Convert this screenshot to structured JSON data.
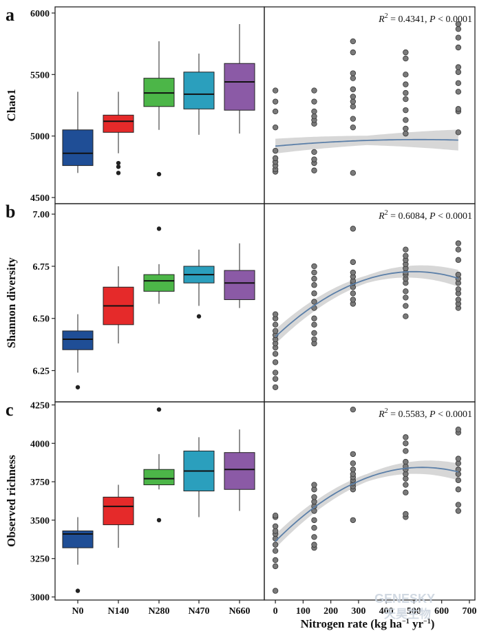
{
  "figure": {
    "x_axis_title": "Nitrogen rate (kg ha",
    "x_axis_title_sup1": "−1",
    "x_axis_title_mid": " yr",
    "x_axis_title_sup2": "−1",
    "x_axis_title_end": ")",
    "watermark": {
      "main": "GENESKY",
      "sub": "天昊生物"
    },
    "colors": {
      "N0": "#1f4e96",
      "N140": "#e52a2a",
      "N280": "#4cb648",
      "N470": "#2b9fbd",
      "N660": "#8b5aa6",
      "fit_line": "#5b7fa8",
      "ci_band": "#d3d3d3",
      "point_fill": "#7a7a7a"
    }
  },
  "chart_data": [
    {
      "panel": "a",
      "type": "box+scatter",
      "ylabel": "Chao1",
      "ylim": [
        4450,
        6050
      ],
      "yticks": [
        4500,
        5000,
        5500,
        6000
      ],
      "box": {
        "categories": [
          "N0",
          "N140",
          "N280",
          "N470",
          "N660"
        ],
        "stats": [
          {
            "wlo": 4700,
            "q1": 4760,
            "med": 4860,
            "q3": 5050,
            "whi": 5360,
            "out": []
          },
          {
            "wlo": 4860,
            "q1": 5030,
            "med": 5120,
            "q3": 5170,
            "whi": 5360,
            "out": [
              4700,
              4750,
              4780
            ]
          },
          {
            "wlo": 5050,
            "q1": 5240,
            "med": 5350,
            "q3": 5470,
            "whi": 5770,
            "out": [
              4690
            ]
          },
          {
            "wlo": 5010,
            "q1": 5220,
            "med": 5340,
            "q3": 5520,
            "whi": 5670,
            "out": []
          },
          {
            "wlo": 5020,
            "q1": 5210,
            "med": 5440,
            "q3": 5590,
            "whi": 5910,
            "out": []
          }
        ]
      },
      "scatter": {
        "xlim": [
          -40,
          720
        ],
        "xticks": [
          0,
          100,
          200,
          300,
          400,
          500,
          600,
          700
        ],
        "stat_text": {
          "r2_symbol": "R",
          "r2_sup": "2",
          "r2_value": " = 0.4341, ",
          "p_symbol": "P",
          "p_value": " < 0.0001"
        },
        "points": [
          [
            0,
            4710
          ],
          [
            0,
            4730
          ],
          [
            0,
            4760
          ],
          [
            0,
            4790
          ],
          [
            0,
            4820
          ],
          [
            0,
            4880
          ],
          [
            0,
            5070
          ],
          [
            0,
            5200
          ],
          [
            0,
            5280
          ],
          [
            0,
            5370
          ],
          [
            140,
            4720
          ],
          [
            140,
            4780
          ],
          [
            140,
            4810
          ],
          [
            140,
            4870
          ],
          [
            140,
            5100
          ],
          [
            140,
            5130
          ],
          [
            140,
            5160
          ],
          [
            140,
            5200
          ],
          [
            140,
            5280
          ],
          [
            140,
            5370
          ],
          [
            280,
            4700
          ],
          [
            280,
            5070
          ],
          [
            280,
            5140
          ],
          [
            280,
            5240
          ],
          [
            280,
            5280
          ],
          [
            280,
            5320
          ],
          [
            280,
            5380
          ],
          [
            280,
            5470
          ],
          [
            280,
            5510
          ],
          [
            280,
            5680
          ],
          [
            280,
            5770
          ],
          [
            470,
            5020
          ],
          [
            470,
            5060
          ],
          [
            470,
            5130
          ],
          [
            470,
            5210
          ],
          [
            470,
            5300
          ],
          [
            470,
            5350
          ],
          [
            470,
            5420
          ],
          [
            470,
            5500
          ],
          [
            470,
            5630
          ],
          [
            470,
            5680
          ],
          [
            660,
            5030
          ],
          [
            660,
            5200
          ],
          [
            660,
            5220
          ],
          [
            660,
            5360
          ],
          [
            660,
            5430
          ],
          [
            660,
            5520
          ],
          [
            660,
            5560
          ],
          [
            660,
            5720
          ],
          [
            660,
            5800
          ],
          [
            660,
            5870
          ],
          [
            660,
            5910
          ]
        ],
        "fit": {
          "a": -0.0001996,
          "b": 0.2062,
          "c": 4918
        },
        "ci": [
          [
            0,
            60
          ],
          [
            330,
            38
          ],
          [
            660,
            85
          ]
        ]
      }
    },
    {
      "panel": "b",
      "type": "box+scatter",
      "ylabel": "Shannon diversity",
      "ylim": [
        6.1,
        7.05
      ],
      "yticks": [
        6.25,
        6.5,
        6.75,
        7.0
      ],
      "ytick_labels": [
        "6.25",
        "6.50",
        "6.75",
        "7.00"
      ],
      "box": {
        "categories": [
          "N0",
          "N140",
          "N280",
          "N470",
          "N660"
        ],
        "stats": [
          {
            "wlo": 6.24,
            "q1": 6.35,
            "med": 6.4,
            "q3": 6.44,
            "whi": 6.52,
            "out": [
              6.17
            ]
          },
          {
            "wlo": 6.38,
            "q1": 6.47,
            "med": 6.56,
            "q3": 6.65,
            "whi": 6.75,
            "out": []
          },
          {
            "wlo": 6.57,
            "q1": 6.63,
            "med": 6.68,
            "q3": 6.71,
            "whi": 6.76,
            "out": [
              6.93
            ]
          },
          {
            "wlo": 6.56,
            "q1": 6.67,
            "med": 6.71,
            "q3": 6.75,
            "whi": 6.83,
            "out": [
              6.51
            ]
          },
          {
            "wlo": 6.55,
            "q1": 6.59,
            "med": 6.67,
            "q3": 6.73,
            "whi": 6.86,
            "out": []
          }
        ]
      },
      "scatter": {
        "xlim": [
          -40,
          720
        ],
        "xticks": [
          0,
          100,
          200,
          300,
          400,
          500,
          600,
          700
        ],
        "stat_text": {
          "r2_symbol": "R",
          "r2_sup": "2",
          "r2_value": " = 0.6084, ",
          "p_symbol": "P",
          "p_value": " < 0.0001"
        },
        "points": [
          [
            0,
            6.17
          ],
          [
            0,
            6.21
          ],
          [
            0,
            6.24
          ],
          [
            0,
            6.29
          ],
          [
            0,
            6.33
          ],
          [
            0,
            6.36
          ],
          [
            0,
            6.38
          ],
          [
            0,
            6.4
          ],
          [
            0,
            6.42
          ],
          [
            0,
            6.44
          ],
          [
            0,
            6.47
          ],
          [
            0,
            6.5
          ],
          [
            0,
            6.52
          ],
          [
            140,
            6.38
          ],
          [
            140,
            6.4
          ],
          [
            140,
            6.43
          ],
          [
            140,
            6.47
          ],
          [
            140,
            6.5
          ],
          [
            140,
            6.55
          ],
          [
            140,
            6.58
          ],
          [
            140,
            6.62
          ],
          [
            140,
            6.66
          ],
          [
            140,
            6.69
          ],
          [
            140,
            6.72
          ],
          [
            140,
            6.75
          ],
          [
            280,
            6.57
          ],
          [
            280,
            6.59
          ],
          [
            280,
            6.62
          ],
          [
            280,
            6.65
          ],
          [
            280,
            6.67
          ],
          [
            280,
            6.68
          ],
          [
            280,
            6.7
          ],
          [
            280,
            6.72
          ],
          [
            280,
            6.77
          ],
          [
            280,
            6.93
          ],
          [
            470,
            6.51
          ],
          [
            470,
            6.56
          ],
          [
            470,
            6.6
          ],
          [
            470,
            6.63
          ],
          [
            470,
            6.67
          ],
          [
            470,
            6.69
          ],
          [
            470,
            6.71
          ],
          [
            470,
            6.72
          ],
          [
            470,
            6.74
          ],
          [
            470,
            6.76
          ],
          [
            470,
            6.78
          ],
          [
            470,
            6.8
          ],
          [
            470,
            6.83
          ],
          [
            660,
            6.55
          ],
          [
            660,
            6.57
          ],
          [
            660,
            6.59
          ],
          [
            660,
            6.62
          ],
          [
            660,
            6.64
          ],
          [
            660,
            6.67
          ],
          [
            660,
            6.69
          ],
          [
            660,
            6.71
          ],
          [
            660,
            6.78
          ],
          [
            660,
            6.83
          ],
          [
            660,
            6.86
          ]
        ],
        "fit": {
          "a": -1.247e-06,
          "b": 0.0012478,
          "c": 6.412
        },
        "ci": [
          [
            0,
            0.035
          ],
          [
            330,
            0.018
          ],
          [
            660,
            0.04
          ]
        ]
      }
    },
    {
      "panel": "c",
      "type": "box+scatter",
      "ylabel": "Observed richness",
      "ylim": [
        2980,
        4270
      ],
      "yticks": [
        3000,
        3250,
        3500,
        3750,
        4000,
        4250
      ],
      "box": {
        "categories": [
          "N0",
          "N140",
          "N280",
          "N470",
          "N660"
        ],
        "stats": [
          {
            "wlo": 3210,
            "q1": 3320,
            "med": 3410,
            "q3": 3430,
            "whi": 3520,
            "out": [
              3040
            ]
          },
          {
            "wlo": 3320,
            "q1": 3470,
            "med": 3590,
            "q3": 3650,
            "whi": 3730,
            "out": []
          },
          {
            "wlo": 3700,
            "q1": 3730,
            "med": 3770,
            "q3": 3830,
            "whi": 3930,
            "out": [
              3500,
              4220
            ]
          },
          {
            "wlo": 3520,
            "q1": 3690,
            "med": 3820,
            "q3": 3950,
            "whi": 4040,
            "out": []
          },
          {
            "wlo": 3560,
            "q1": 3700,
            "med": 3830,
            "q3": 3940,
            "whi": 4090,
            "out": []
          }
        ]
      },
      "scatter": {
        "xlim": [
          -40,
          720
        ],
        "xticks": [
          0,
          100,
          200,
          300,
          400,
          500,
          600,
          700
        ],
        "stat_text": {
          "r2_symbol": "R",
          "r2_sup": "2",
          "r2_value": " = 0.5583, ",
          "p_symbol": "P",
          "p_value": " < 0.0001"
        },
        "points": [
          [
            0,
            3040
          ],
          [
            0,
            3200
          ],
          [
            0,
            3240
          ],
          [
            0,
            3300
          ],
          [
            0,
            3340
          ],
          [
            0,
            3380
          ],
          [
            0,
            3410
          ],
          [
            0,
            3430
          ],
          [
            0,
            3460
          ],
          [
            0,
            3520
          ],
          [
            0,
            3530
          ],
          [
            140,
            3320
          ],
          [
            140,
            3340
          ],
          [
            140,
            3390
          ],
          [
            140,
            3450
          ],
          [
            140,
            3500
          ],
          [
            140,
            3560
          ],
          [
            140,
            3590
          ],
          [
            140,
            3620
          ],
          [
            140,
            3650
          ],
          [
            140,
            3700
          ],
          [
            140,
            3730
          ],
          [
            280,
            3500
          ],
          [
            280,
            3700
          ],
          [
            280,
            3720
          ],
          [
            280,
            3740
          ],
          [
            280,
            3760
          ],
          [
            280,
            3780
          ],
          [
            280,
            3800
          ],
          [
            280,
            3830
          ],
          [
            280,
            3870
          ],
          [
            280,
            3930
          ],
          [
            280,
            4220
          ],
          [
            470,
            3520
          ],
          [
            470,
            3540
          ],
          [
            470,
            3680
          ],
          [
            470,
            3730
          ],
          [
            470,
            3770
          ],
          [
            470,
            3800
          ],
          [
            470,
            3830
          ],
          [
            470,
            3850
          ],
          [
            470,
            3880
          ],
          [
            470,
            3950
          ],
          [
            470,
            4000
          ],
          [
            470,
            4040
          ],
          [
            660,
            3560
          ],
          [
            660,
            3600
          ],
          [
            660,
            3700
          ],
          [
            660,
            3760
          ],
          [
            660,
            3800
          ],
          [
            660,
            3830
          ],
          [
            660,
            3870
          ],
          [
            660,
            3900
          ],
          [
            660,
            4070
          ],
          [
            660,
            4090
          ]
        ],
        "fit": {
          "a": -0.00172,
          "b": 1.82,
          "c": 3362
        },
        "ci": [
          [
            0,
            45
          ],
          [
            330,
            25
          ],
          [
            660,
            55
          ]
        ]
      }
    }
  ]
}
